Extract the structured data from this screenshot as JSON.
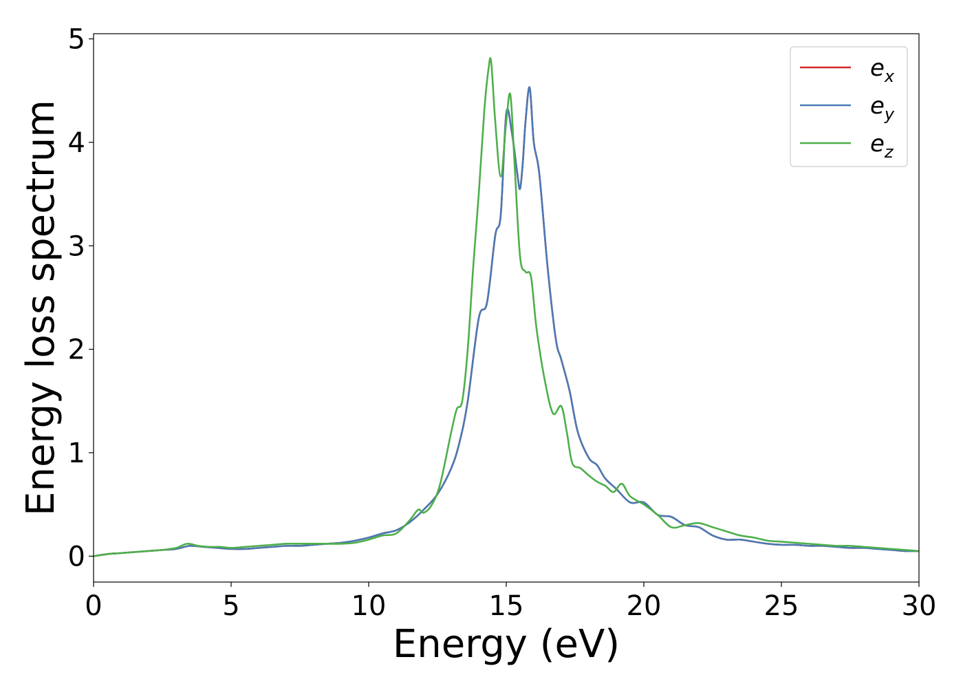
{
  "chart_data": {
    "type": "line",
    "xlabel": "Energy (eV)",
    "ylabel": "Energy loss spectrum",
    "xlim": [
      0,
      30
    ],
    "ylim": [
      -0.25,
      5.05
    ],
    "xticks": [
      0,
      5,
      10,
      15,
      20,
      25,
      30
    ],
    "yticks": [
      0,
      1,
      2,
      3,
      4,
      5
    ],
    "grid": false,
    "legend_position": "top-right",
    "series": [
      {
        "name": "e_x",
        "label_base": "e",
        "label_sub": "x",
        "color": "#d62728",
        "x": [
          0,
          0.5,
          1,
          1.5,
          2,
          2.5,
          3,
          3.5,
          4,
          4.5,
          5,
          5.5,
          6,
          6.5,
          7,
          7.5,
          8,
          8.5,
          9,
          9.5,
          10,
          10.5,
          11,
          11.5,
          12,
          12.5,
          13,
          13.3,
          13.6,
          14,
          14.3,
          14.6,
          14.8,
          15,
          15.2,
          15.4,
          15.5,
          15.6,
          15.7,
          15.85,
          16,
          16.2,
          16.5,
          16.8,
          17,
          17.3,
          17.6,
          18,
          18.3,
          18.6,
          19,
          19.5,
          20,
          20.5,
          21,
          21.5,
          22,
          22.5,
          23,
          23.5,
          24,
          24.5,
          25,
          25.5,
          26,
          26.5,
          27,
          27.5,
          28,
          28.5,
          29,
          29.5,
          30
        ],
        "y": [
          0,
          0.02,
          0.03,
          0.04,
          0.05,
          0.06,
          0.07,
          0.1,
          0.09,
          0.08,
          0.07,
          0.07,
          0.08,
          0.09,
          0.1,
          0.1,
          0.11,
          0.12,
          0.13,
          0.15,
          0.18,
          0.22,
          0.25,
          0.33,
          0.45,
          0.6,
          0.85,
          1.1,
          1.5,
          2.3,
          2.45,
          3.1,
          3.3,
          4.28,
          4.1,
          3.7,
          3.55,
          3.8,
          4.2,
          4.53,
          4.0,
          3.7,
          2.8,
          2.1,
          1.9,
          1.6,
          1.2,
          0.95,
          0.88,
          0.75,
          0.65,
          0.52,
          0.52,
          0.4,
          0.38,
          0.3,
          0.28,
          0.2,
          0.16,
          0.16,
          0.14,
          0.12,
          0.11,
          0.11,
          0.1,
          0.1,
          0.09,
          0.08,
          0.08,
          0.07,
          0.06,
          0.05,
          0.05
        ]
      },
      {
        "name": "e_y",
        "label_base": "e",
        "label_sub": "y",
        "color": "#4a7ab5",
        "x": [
          0,
          0.5,
          1,
          1.5,
          2,
          2.5,
          3,
          3.5,
          4,
          4.5,
          5,
          5.5,
          6,
          6.5,
          7,
          7.5,
          8,
          8.5,
          9,
          9.5,
          10,
          10.5,
          11,
          11.5,
          12,
          12.5,
          13,
          13.3,
          13.6,
          14,
          14.3,
          14.6,
          14.8,
          15,
          15.2,
          15.4,
          15.5,
          15.6,
          15.7,
          15.85,
          16,
          16.2,
          16.5,
          16.8,
          17,
          17.3,
          17.6,
          18,
          18.3,
          18.6,
          19,
          19.5,
          20,
          20.5,
          21,
          21.5,
          22,
          22.5,
          23,
          23.5,
          24,
          24.5,
          25,
          25.5,
          26,
          26.5,
          27,
          27.5,
          28,
          28.5,
          29,
          29.5,
          30
        ],
        "y": [
          0,
          0.02,
          0.03,
          0.04,
          0.05,
          0.06,
          0.07,
          0.1,
          0.09,
          0.08,
          0.07,
          0.07,
          0.08,
          0.09,
          0.1,
          0.1,
          0.11,
          0.12,
          0.13,
          0.15,
          0.18,
          0.22,
          0.25,
          0.33,
          0.45,
          0.6,
          0.85,
          1.1,
          1.5,
          2.3,
          2.45,
          3.1,
          3.3,
          4.28,
          4.1,
          3.7,
          3.55,
          3.8,
          4.2,
          4.53,
          4.0,
          3.7,
          2.8,
          2.1,
          1.9,
          1.6,
          1.2,
          0.95,
          0.88,
          0.75,
          0.65,
          0.52,
          0.52,
          0.4,
          0.38,
          0.3,
          0.28,
          0.2,
          0.16,
          0.16,
          0.14,
          0.12,
          0.11,
          0.11,
          0.1,
          0.1,
          0.09,
          0.08,
          0.08,
          0.07,
          0.06,
          0.05,
          0.05
        ]
      },
      {
        "name": "e_z",
        "label_base": "e",
        "label_sub": "z",
        "color": "#4daf4a",
        "x": [
          0,
          0.5,
          1,
          1.5,
          2,
          2.5,
          3,
          3.4,
          3.8,
          4.2,
          4.6,
          5,
          5.5,
          6,
          6.5,
          7,
          7.5,
          8,
          8.5,
          9,
          9.5,
          10,
          10.5,
          11,
          11.5,
          11.8,
          12,
          12.3,
          12.6,
          13,
          13.2,
          13.4,
          13.6,
          13.8,
          14,
          14.2,
          14.35,
          14.45,
          14.6,
          14.8,
          15,
          15.15,
          15.3,
          15.5,
          15.7,
          15.9,
          16.1,
          16.4,
          16.7,
          17,
          17.2,
          17.4,
          17.7,
          18,
          18.3,
          18.6,
          18.9,
          19.2,
          19.5,
          20,
          20.5,
          21,
          21.5,
          22,
          22.5,
          23,
          23.5,
          24,
          24.5,
          25,
          25.5,
          26,
          26.5,
          27,
          27.5,
          28,
          28.5,
          29,
          29.5,
          30
        ],
        "y": [
          0,
          0.02,
          0.03,
          0.04,
          0.05,
          0.06,
          0.08,
          0.12,
          0.1,
          0.09,
          0.09,
          0.08,
          0.09,
          0.1,
          0.11,
          0.12,
          0.12,
          0.12,
          0.12,
          0.12,
          0.13,
          0.16,
          0.2,
          0.22,
          0.35,
          0.45,
          0.42,
          0.5,
          0.7,
          1.2,
          1.42,
          1.5,
          2.0,
          2.8,
          3.5,
          4.3,
          4.7,
          4.78,
          4.2,
          3.67,
          4.2,
          4.46,
          3.8,
          2.9,
          2.75,
          2.7,
          2.2,
          1.7,
          1.38,
          1.45,
          1.2,
          0.9,
          0.85,
          0.78,
          0.72,
          0.68,
          0.62,
          0.7,
          0.58,
          0.5,
          0.4,
          0.28,
          0.3,
          0.32,
          0.28,
          0.24,
          0.2,
          0.18,
          0.15,
          0.14,
          0.13,
          0.12,
          0.11,
          0.1,
          0.1,
          0.09,
          0.08,
          0.07,
          0.06,
          0.05
        ]
      }
    ]
  }
}
